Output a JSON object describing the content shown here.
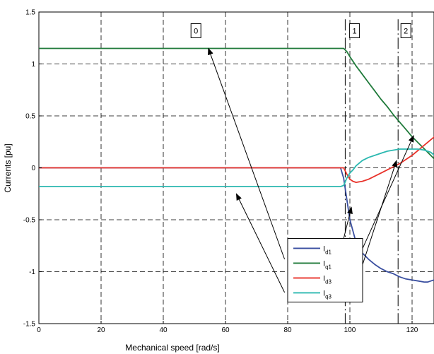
{
  "chart_data": {
    "type": "line",
    "xlabel": "Mechanical speed [rad/s]",
    "ylabel": "Currents [pu]",
    "xlim": [
      0,
      130
    ],
    "ylim": [
      -1.5,
      1.5
    ],
    "xticks": [
      0,
      20,
      40,
      60,
      80,
      100,
      120
    ],
    "yticks": [
      -1.5,
      -1,
      -0.5,
      0,
      0.5,
      1,
      1.5
    ],
    "xtick_labels": [
      "0",
      "20",
      "40",
      "60",
      "80",
      "100",
      "120"
    ],
    "ytick_labels": [
      "-1.5",
      "-1",
      "-0.5",
      "0",
      "0.5",
      "1",
      "1.5"
    ],
    "grid": true,
    "legend_position": "bottom-right",
    "series": [
      {
        "name": "I_d1",
        "label_main": "I",
        "label_sub": "d1",
        "color": "#3a4fa0",
        "x": [
          0,
          97,
          98,
          99,
          100,
          102,
          104,
          106,
          108,
          110,
          112,
          114,
          116,
          118,
          120,
          122,
          124,
          125,
          126,
          128,
          130
        ],
        "y": [
          0,
          0,
          -0.1,
          -0.3,
          -0.5,
          -0.72,
          -0.82,
          -0.88,
          -0.93,
          -0.97,
          -1.0,
          -1.02,
          -1.05,
          -1.07,
          -1.08,
          -1.09,
          -1.1,
          -1.1,
          -1.09,
          -1.07,
          -1.05
        ]
      },
      {
        "name": "I_q1",
        "label_main": "I",
        "label_sub": "q1",
        "color": "#1f7a3a",
        "x": [
          0,
          98,
          99,
          100,
          102,
          104,
          106,
          108,
          110,
          112,
          114,
          116,
          118,
          120,
          122,
          124,
          126,
          128,
          130
        ],
        "y": [
          1.15,
          1.15,
          1.12,
          1.07,
          0.98,
          0.9,
          0.82,
          0.74,
          0.66,
          0.59,
          0.51,
          0.44,
          0.37,
          0.3,
          0.24,
          0.18,
          0.12,
          0.06,
          0.02
        ]
      },
      {
        "name": "I_d3",
        "label_main": "I",
        "label_sub": "d3",
        "color": "#e8322a",
        "x": [
          0,
          98,
          99,
          100,
          101,
          102,
          104,
          106,
          108,
          110,
          112,
          114,
          116,
          118,
          120,
          122,
          124,
          126,
          128,
          130
        ],
        "y": [
          0,
          0,
          -0.06,
          -0.11,
          -0.13,
          -0.14,
          -0.13,
          -0.11,
          -0.08,
          -0.05,
          -0.02,
          0.01,
          0.04,
          0.08,
          0.12,
          0.17,
          0.22,
          0.27,
          0.32,
          0.37
        ]
      },
      {
        "name": "I_q3",
        "label_main": "I",
        "label_sub": "q3",
        "color": "#2bb8b0",
        "x": [
          0,
          97,
          98,
          99,
          100,
          101,
          102,
          104,
          106,
          108,
          110,
          112,
          114,
          116,
          118,
          120,
          122,
          124,
          126,
          128,
          130
        ],
        "y": [
          -0.18,
          -0.18,
          -0.17,
          -0.1,
          -0.05,
          -0.02,
          0.02,
          0.07,
          0.1,
          0.12,
          0.14,
          0.16,
          0.17,
          0.18,
          0.18,
          0.18,
          0.18,
          0.17,
          0.15,
          0.1,
          0.06
        ]
      }
    ],
    "region_lines": [
      {
        "x": 98.5,
        "y_from": -1.5,
        "y_to": 1.43
      },
      {
        "x": 115.5,
        "y_from": -1.5,
        "y_to": 1.43
      }
    ],
    "region_labels": [
      {
        "text": "0",
        "x": 50.5,
        "y": 1.32
      },
      {
        "text": "1",
        "x": 101.5,
        "y": 1.32
      },
      {
        "text": "2",
        "x": 118,
        "y": 1.32
      }
    ],
    "annotation_arrows": [
      {
        "from": [
          79,
          -0.88
        ],
        "to": [
          54.5,
          1.15
        ]
      },
      {
        "from": [
          79,
          -1.2
        ],
        "to": [
          63.5,
          -0.25
        ]
      },
      {
        "from": [
          98,
          -0.68
        ],
        "to": [
          100.5,
          -0.38
        ]
      },
      {
        "from": [
          100.5,
          -1.26
        ],
        "to": [
          115,
          0.07
        ]
      },
      {
        "from": [
          101,
          -0.98
        ],
        "to": [
          120.5,
          0.31
        ]
      }
    ],
    "legend_lines": [
      {
        "from": [
          99,
          -0.68
        ],
        "to": [
          103,
          -0.98
        ]
      },
      {
        "from": [
          99,
          -1.26
        ],
        "to": [
          103,
          -1.11
        ]
      }
    ]
  }
}
